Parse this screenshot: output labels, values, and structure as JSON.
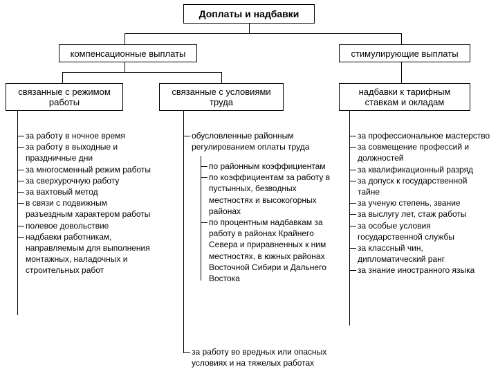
{
  "colors": {
    "line": "#000000",
    "bg": "#ffffff",
    "text": "#000000"
  },
  "typography": {
    "title_fontsize": 14,
    "title_weight": "bold",
    "category_fontsize": 13,
    "category_weight": "normal",
    "subcat_fontsize": 13,
    "subcat_weight": "normal",
    "list_fontsize": 12
  },
  "root": {
    "label": "Доплаты  и  надбавки"
  },
  "level1": {
    "left": {
      "label": "компенсационные выплаты"
    },
    "right": {
      "label": "стимулирующие выплаты"
    }
  },
  "level2": {
    "a": {
      "label_l1": "связанные с режимом",
      "label_l2": "работы"
    },
    "b": {
      "label_l1": "связанные с условиями",
      "label_l2": "труда"
    },
    "c": {
      "label_l1": "надбавки к тарифным",
      "label_l2": "ставкам и окладам"
    }
  },
  "list_a": [
    "за работу в ночное время",
    "за работу в выходные и праздничные дни",
    "за многосменный режим работы",
    "за сверхурочную работу",
    "за вахтовый метод",
    "в связи с подвижным разъездным характером работы",
    "полевое довольствие",
    "надбавки работникам, направляемым для выполне­ния монтажных, наладочных и строительных работ"
  ],
  "list_b_top": [
    "обусловленные районным регулированием оплаты труда"
  ],
  "list_b_sub": [
    "по районным коэффициентам",
    "по коэффициентам за работу в пустынных, безводных местностях и высокогорных районах",
    "по процентным надбавкам за работу в районах Крайнего Севера и приравненных к ним местностях, в южных районах Восточной Сибири и Дальнего Востока"
  ],
  "list_b_bottom": [
    "за работу во вредных или опасных условиях и на тяжелых работах"
  ],
  "list_c": [
    "за профессиональное мастерство",
    "за совмещение профессий и должностей",
    "за квалификационный разряд",
    "за допуск к государственной тайне",
    "за ученую степень, звание",
    "за выслугу лет, стаж работы",
    "за особые условия государственной службы",
    "за классный чин, дипломатический ранг",
    "за знание иностранного языка"
  ]
}
